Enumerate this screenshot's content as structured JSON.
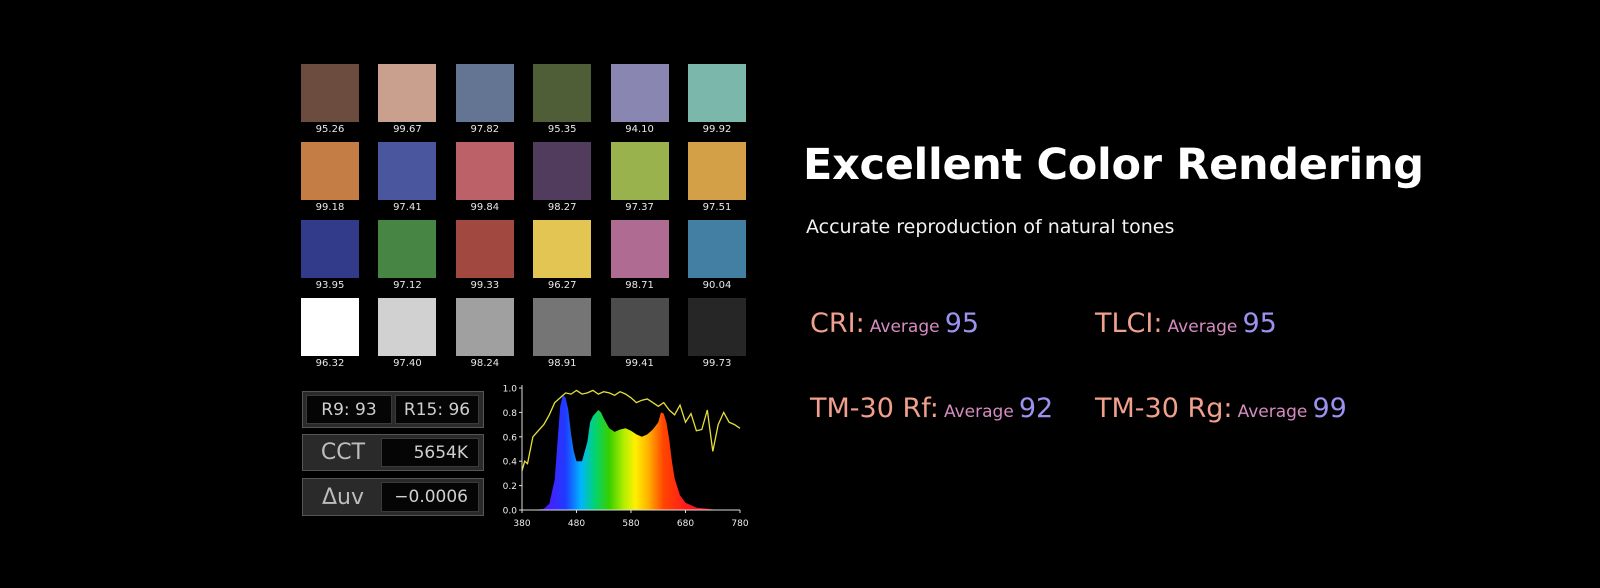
{
  "swatches": [
    {
      "color": "#6b4c3e",
      "value": "95.26"
    },
    {
      "color": "#c99f8d",
      "value": "99.67"
    },
    {
      "color": "#637592",
      "value": "97.82"
    },
    {
      "color": "#4f5e37",
      "value": "95.35"
    },
    {
      "color": "#8a86b2",
      "value": "94.10"
    },
    {
      "color": "#7cb7ab",
      "value": "99.92"
    },
    {
      "color": "#c47d45",
      "value": "99.18"
    },
    {
      "color": "#4a569d",
      "value": "97.41"
    },
    {
      "color": "#bd6168",
      "value": "99.84"
    },
    {
      "color": "#523c5e",
      "value": "98.27"
    },
    {
      "color": "#9ab24d",
      "value": "97.37"
    },
    {
      "color": "#d3a047",
      "value": "97.51"
    },
    {
      "color": "#323b8a",
      "value": "93.95"
    },
    {
      "color": "#478544",
      "value": "97.12"
    },
    {
      "color": "#a14840",
      "value": "99.33"
    },
    {
      "color": "#e2c553",
      "value": "96.27"
    },
    {
      "color": "#b06b92",
      "value": "98.71"
    },
    {
      "color": "#437ea3",
      "value": "90.04"
    },
    {
      "color": "#ffffff",
      "value": "96.32"
    },
    {
      "color": "#d1d1d1",
      "value": "97.40"
    },
    {
      "color": "#a0a0a0",
      "value": "98.24"
    },
    {
      "color": "#757575",
      "value": "98.91"
    },
    {
      "color": "#4c4c4c",
      "value": "99.41"
    },
    {
      "color": "#262626",
      "value": "99.73"
    }
  ],
  "readouts": {
    "r9": "R9: 93",
    "r15": "R15: 96",
    "cct_label": "CCT",
    "cct_value": "5654K",
    "duv_label": "Δuv",
    "duv_value": "−0.0006"
  },
  "chart_data": {
    "type": "area",
    "xlim": [
      380,
      780
    ],
    "ylim": [
      0,
      1.0
    ],
    "x_ticks": [
      "380",
      "480",
      "580",
      "680",
      "780"
    ],
    "y_ticks": [
      "0.0",
      "0.2",
      "0.4",
      "0.6",
      "0.8",
      "1.0"
    ],
    "grid": false,
    "series": [
      {
        "role": "spectral-power-fill",
        "x": [
          380,
          400,
          420,
          430,
          440,
          445,
          450,
          455,
          460,
          465,
          470,
          475,
          480,
          490,
          500,
          505,
          510,
          520,
          525,
          530,
          540,
          550,
          560,
          570,
          580,
          590,
          600,
          610,
          620,
          630,
          635,
          640,
          645,
          650,
          655,
          660,
          670,
          680,
          700,
          720,
          740,
          760,
          780
        ],
        "y": [
          0.0,
          0.0,
          0.01,
          0.05,
          0.25,
          0.55,
          0.85,
          0.94,
          0.92,
          0.82,
          0.62,
          0.48,
          0.4,
          0.4,
          0.56,
          0.72,
          0.77,
          0.82,
          0.8,
          0.75,
          0.67,
          0.64,
          0.66,
          0.67,
          0.65,
          0.62,
          0.6,
          0.62,
          0.66,
          0.72,
          0.8,
          0.79,
          0.72,
          0.58,
          0.4,
          0.26,
          0.12,
          0.06,
          0.02,
          0.01,
          0.0,
          0.0,
          0.0
        ]
      },
      {
        "role": "color-rendering-line",
        "x": [
          380,
          385,
          390,
          400,
          410,
          420,
          430,
          440,
          450,
          460,
          470,
          480,
          490,
          500,
          510,
          520,
          530,
          540,
          550,
          560,
          570,
          580,
          590,
          600,
          610,
          620,
          630,
          640,
          650,
          660,
          670,
          680,
          690,
          700,
          710,
          720,
          730,
          740,
          750,
          760,
          770,
          780
        ],
        "y": [
          0.32,
          0.4,
          0.38,
          0.6,
          0.65,
          0.7,
          0.78,
          0.88,
          0.92,
          0.96,
          0.95,
          0.98,
          0.95,
          0.96,
          0.98,
          0.95,
          0.97,
          0.96,
          0.94,
          0.97,
          0.95,
          0.92,
          0.88,
          0.9,
          0.91,
          0.88,
          0.85,
          0.88,
          0.82,
          0.78,
          0.86,
          0.72,
          0.79,
          0.65,
          0.66,
          0.82,
          0.48,
          0.7,
          0.8,
          0.72,
          0.7,
          0.67
        ]
      }
    ]
  },
  "headline": "Excellent Color Rendering",
  "subheadline": "Accurate reproduction of natural tones",
  "metrics": [
    {
      "label": "CRI:",
      "avg": "Average",
      "value": "95"
    },
    {
      "label": "TLCI:",
      "avg": "Average",
      "value": "95"
    },
    {
      "label": "TM-30 Rf:",
      "avg": "Average",
      "value": "92"
    },
    {
      "label": "TM-30 Rg:",
      "avg": "Average",
      "value": "99"
    }
  ]
}
